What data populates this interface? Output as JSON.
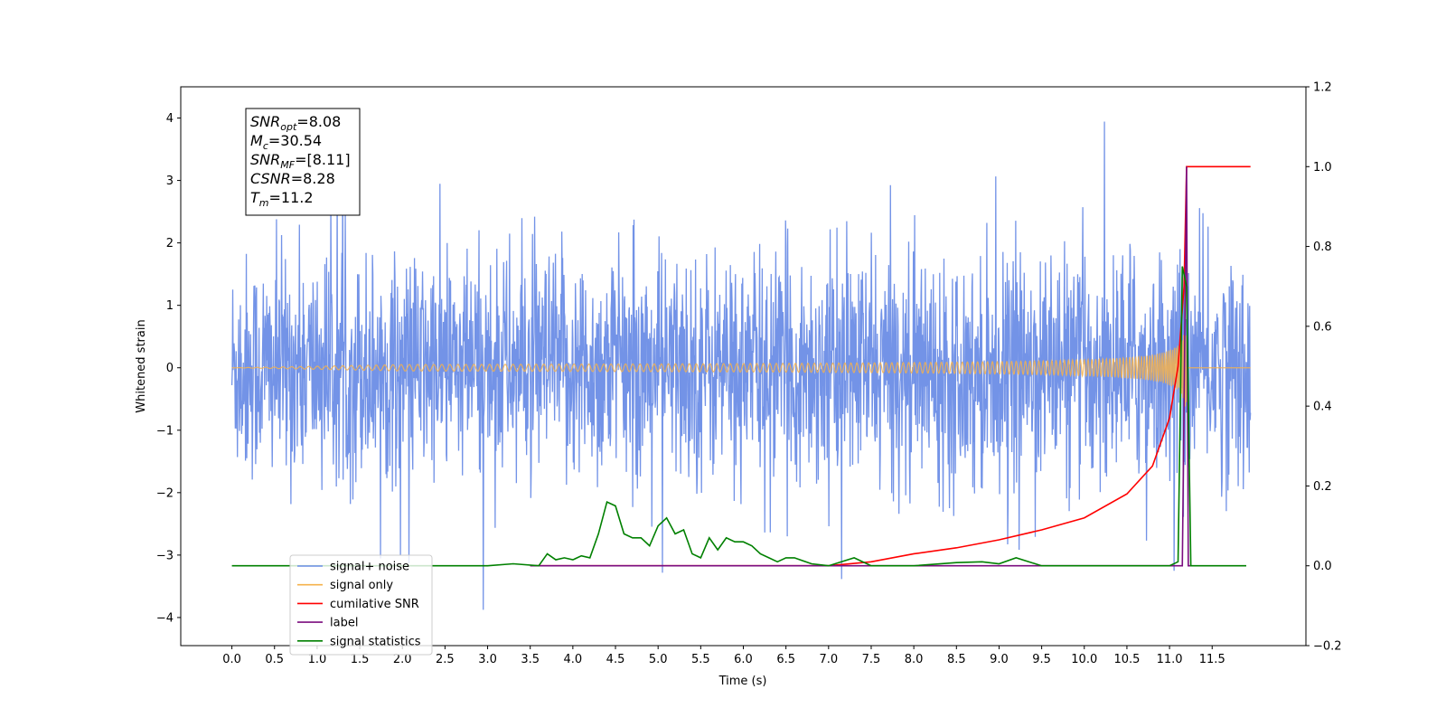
{
  "chart_data": {
    "type": "line",
    "title": "",
    "xlabel": "Time (s)",
    "ylabel": "Whitened strain",
    "ylabel_right": "",
    "xlim": [
      -0.6,
      12.6
    ],
    "ylim": [
      -4.45,
      4.5
    ],
    "ylim_right": [
      -0.2,
      1.2
    ],
    "x_ticks": [
      "0.0",
      "0.5",
      "1.0",
      "1.5",
      "2.0",
      "2.5",
      "3.0",
      "3.5",
      "4.0",
      "4.5",
      "5.0",
      "5.5",
      "6.0",
      "6.5",
      "7.0",
      "7.5",
      "8.0",
      "8.5",
      "9.0",
      "9.5",
      "10.0",
      "10.5",
      "11.0",
      "11.5"
    ],
    "y_ticks": [
      "4",
      "3",
      "2",
      "1",
      "0",
      "−1",
      "−2",
      "−3",
      "−4"
    ],
    "y_ticks_right": [
      "1.2",
      "1.0",
      "0.8",
      "0.6",
      "0.4",
      "0.2",
      "0.0",
      "−0.2"
    ],
    "grid": false,
    "legend_position": "lower-left",
    "annotation": [
      {
        "sym": "SNR",
        "sub": "opt",
        "value": "=8.08"
      },
      {
        "sym": "M",
        "sub": "c",
        "value": "=30.54"
      },
      {
        "sym": "SNR",
        "sub": "MF",
        "value": "=[8.11]"
      },
      {
        "sym": "CSNR",
        "sub": "",
        "value": "=8.28"
      },
      {
        "sym": "T",
        "sub": "m",
        "value": "=11.2"
      }
    ],
    "series": [
      {
        "name": "signal+ noise",
        "color": "#6b8de6",
        "axis": "left",
        "noise_band": [
          -2.0,
          2.0
        ],
        "max": 4.1,
        "min": -4.05
      },
      {
        "name": "signal only",
        "color": "#f5b24c",
        "axis": "left",
        "chirp_end": 11.2,
        "peak_amplitude": 0.55
      },
      {
        "name": "cumilative SNR",
        "color": "#ff0000",
        "axis": "right",
        "points": [
          [
            3.5,
            0.0
          ],
          [
            7.0,
            0.0
          ],
          [
            7.5,
            0.01
          ],
          [
            8.0,
            0.03
          ],
          [
            8.5,
            0.045
          ],
          [
            9.0,
            0.065
          ],
          [
            9.5,
            0.09
          ],
          [
            10.0,
            0.12
          ],
          [
            10.5,
            0.18
          ],
          [
            10.8,
            0.25
          ],
          [
            11.0,
            0.37
          ],
          [
            11.1,
            0.5
          ],
          [
            11.17,
            0.7
          ],
          [
            11.2,
            1.0
          ],
          [
            11.95,
            1.0
          ]
        ]
      },
      {
        "name": "label",
        "color": "#7b0d7f",
        "axis": "right",
        "points": [
          [
            3.5,
            0.0
          ],
          [
            11.15,
            0.0
          ],
          [
            11.2,
            1.0
          ],
          [
            11.22,
            0.0
          ],
          [
            11.25,
            0.0
          ]
        ]
      },
      {
        "name": "signal statistics",
        "color": "#008000",
        "axis": "right",
        "points": [
          [
            0.0,
            0.0
          ],
          [
            3.0,
            0.0
          ],
          [
            3.3,
            0.005
          ],
          [
            3.6,
            0.0
          ],
          [
            3.7,
            0.03
          ],
          [
            3.8,
            0.015
          ],
          [
            3.9,
            0.02
          ],
          [
            4.0,
            0.015
          ],
          [
            4.1,
            0.025
          ],
          [
            4.2,
            0.02
          ],
          [
            4.3,
            0.08
          ],
          [
            4.4,
            0.16
          ],
          [
            4.5,
            0.15
          ],
          [
            4.6,
            0.08
          ],
          [
            4.7,
            0.07
          ],
          [
            4.8,
            0.07
          ],
          [
            4.9,
            0.05
          ],
          [
            5.0,
            0.1
          ],
          [
            5.1,
            0.12
          ],
          [
            5.2,
            0.08
          ],
          [
            5.3,
            0.09
          ],
          [
            5.4,
            0.03
          ],
          [
            5.5,
            0.02
          ],
          [
            5.6,
            0.07
          ],
          [
            5.7,
            0.04
          ],
          [
            5.8,
            0.07
          ],
          [
            5.9,
            0.06
          ],
          [
            6.0,
            0.06
          ],
          [
            6.1,
            0.05
          ],
          [
            6.2,
            0.03
          ],
          [
            6.3,
            0.02
          ],
          [
            6.4,
            0.01
          ],
          [
            6.5,
            0.02
          ],
          [
            6.6,
            0.02
          ],
          [
            6.8,
            0.005
          ],
          [
            7.0,
            0.0
          ],
          [
            7.3,
            0.02
          ],
          [
            7.5,
            0.0
          ],
          [
            8.0,
            0.0
          ],
          [
            8.5,
            0.008
          ],
          [
            8.8,
            0.01
          ],
          [
            9.0,
            0.005
          ],
          [
            9.2,
            0.02
          ],
          [
            9.5,
            0.0
          ],
          [
            11.0,
            0.0
          ],
          [
            11.1,
            0.01
          ],
          [
            11.15,
            0.75
          ],
          [
            11.2,
            0.7
          ],
          [
            11.25,
            0.0
          ],
          [
            11.9,
            0.0
          ]
        ]
      }
    ]
  }
}
